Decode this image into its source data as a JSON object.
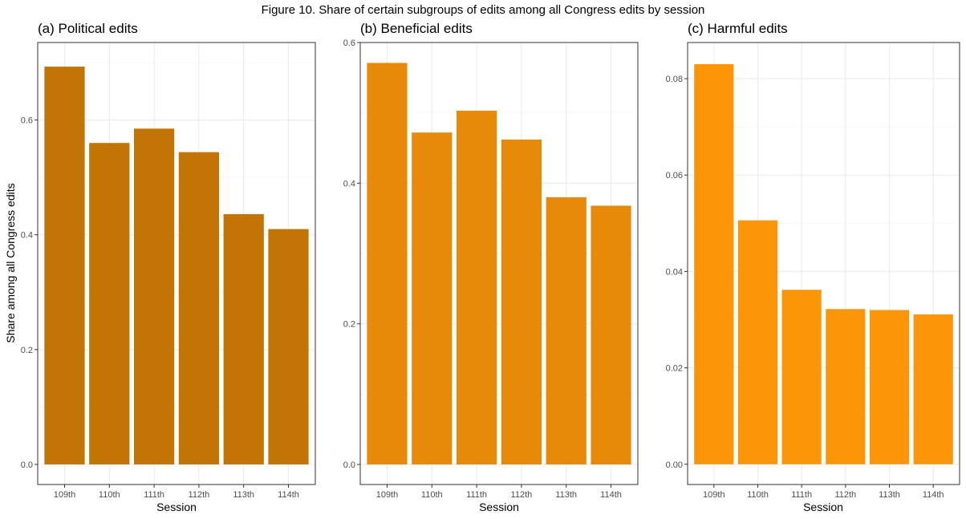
{
  "figure_title": "Figure 10. Share of certain subgroups of edits among all Congress edits by session",
  "chart_data": [
    {
      "type": "bar",
      "title": "(a) Political edits",
      "xlabel": "Session",
      "ylabel": "Share among all Congress edits",
      "categories": [
        "109th",
        "110th",
        "111th",
        "112th",
        "113th",
        "114th"
      ],
      "values": [
        0.693,
        0.56,
        0.585,
        0.544,
        0.436,
        0.41
      ],
      "ylim": [
        -0.035,
        0.735
      ],
      "yticks": [
        0.0,
        0.2,
        0.4,
        0.6
      ],
      "ytick_labels": [
        "0.0",
        "0.2",
        "0.4",
        "0.6"
      ],
      "color": "#c27505",
      "grid": true
    },
    {
      "type": "bar",
      "title": "(b) Beneficial edits",
      "xlabel": "Session",
      "ylabel": "",
      "categories": [
        "109th",
        "110th",
        "111th",
        "112th",
        "113th",
        "114th"
      ],
      "values": [
        0.571,
        0.472,
        0.503,
        0.462,
        0.38,
        0.368
      ],
      "ylim": [
        -0.0285,
        0.6
      ],
      "yticks": [
        0.0,
        0.2,
        0.4,
        0.6
      ],
      "ytick_labels": [
        "0.0",
        "0.2",
        "0.4",
        "0.6"
      ],
      "color": "#e88a09",
      "grid": true
    },
    {
      "type": "bar",
      "title": "(c) Harmful edits",
      "xlabel": "Session",
      "ylabel": "",
      "categories": [
        "109th",
        "110th",
        "111th",
        "112th",
        "113th",
        "114th"
      ],
      "values": [
        0.083,
        0.0506,
        0.0362,
        0.0322,
        0.032,
        0.0311
      ],
      "ylim": [
        -0.0042,
        0.0875
      ],
      "yticks": [
        0.0,
        0.02,
        0.04,
        0.06,
        0.08
      ],
      "ytick_labels": [
        "0.00",
        "0.02",
        "0.04",
        "0.06",
        "0.08"
      ],
      "color": "#fd9509",
      "grid": true
    }
  ]
}
